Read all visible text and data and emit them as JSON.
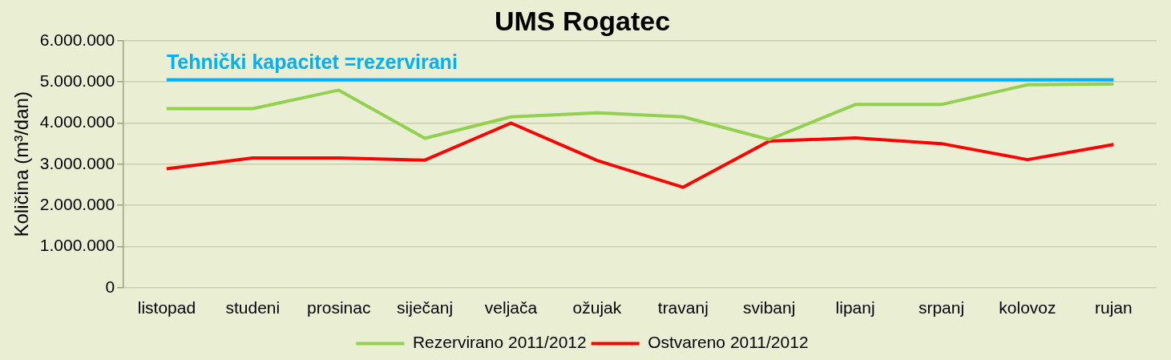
{
  "chart_data": {
    "type": "line",
    "title": "UMS Rogatec",
    "ylabel": "Količina (m³/dan)",
    "categories": [
      "listopad",
      "studeni",
      "prosinac",
      "siječanj",
      "veljača",
      "ožujak",
      "travanj",
      "svibanj",
      "lipanj",
      "srpanj",
      "kolovoz",
      "rujan"
    ],
    "series": [
      {
        "name": "Rezervirano 2011/2012",
        "color": "#92d050",
        "values": [
          4350000,
          4350000,
          4800000,
          3630000,
          4150000,
          4250000,
          4150000,
          3600000,
          4450000,
          4450000,
          4930000,
          4950000
        ]
      },
      {
        "name": "Ostvareno 2011/2012",
        "color": "#ff0000",
        "values": [
          2890000,
          3150000,
          3150000,
          3100000,
          4000000,
          3090000,
          2440000,
          3560000,
          3640000,
          3500000,
          3110000,
          3480000
        ]
      }
    ],
    "ref_lines": [
      {
        "axis": "y",
        "value": 5050000,
        "label": "Tehnički kapacitet =rezervirani",
        "color": "#00b0f0"
      }
    ],
    "ylim": [
      0,
      6000000
    ],
    "yticks": [
      0,
      {
        "value": 1000000,
        "label": "1.000.000"
      },
      {
        "value": 2000000,
        "label": "2.000.000"
      },
      {
        "value": 3000000,
        "label": "3.000.000"
      },
      {
        "value": 4000000,
        "label": "4.000.000"
      },
      {
        "value": 5000000,
        "label": "5.000.000"
      },
      {
        "value": 6000000,
        "label": "6.000.000"
      }
    ],
    "grid": "y",
    "legend": "bottom",
    "marker": "none",
    "line_style": "solid"
  }
}
